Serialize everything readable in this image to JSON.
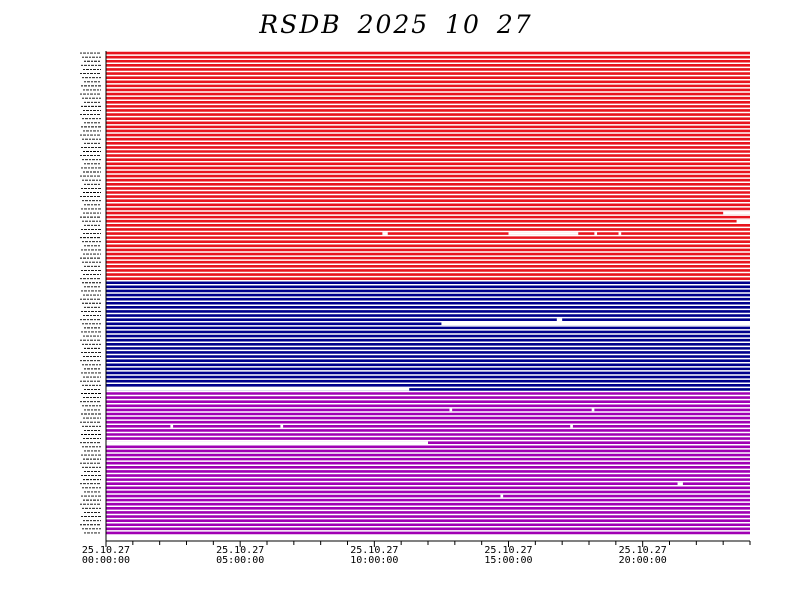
{
  "chart_data": {
    "type": "line",
    "title": "RSDB  2025  10  27",
    "x_tick_labels": [
      {
        "date": "25.10.27",
        "time": "00:00:00",
        "hour": 0
      },
      {
        "date": "25.10.27",
        "time": "05:00:00",
        "hour": 5
      },
      {
        "date": "25.10.27",
        "time": "10:00:00",
        "hour": 10
      },
      {
        "date": "25.10.27",
        "time": "15:00:00",
        "hour": 15
      },
      {
        "date": "25.10.27",
        "time": "20:00:00",
        "hour": 20
      }
    ],
    "xlim_hours": [
      0,
      24
    ],
    "minor_tick_interval_hours": 1,
    "groups": [
      {
        "color": "#e8141e",
        "channel_count": 56
      },
      {
        "color": "#00008c",
        "channel_count": 27
      },
      {
        "color": "#a000b4",
        "channel_count": 35
      }
    ],
    "gaps": [
      {
        "channel": 39,
        "start_hour": 23.0,
        "end_hour": 24.0
      },
      {
        "channel": 41,
        "start_hour": 23.5,
        "end_hour": 24.0
      },
      {
        "channel": 44,
        "start_hour": 15.0,
        "end_hour": 17.6
      },
      {
        "channel": 44,
        "start_hour": 10.3,
        "end_hour": 10.5
      },
      {
        "channel": 44,
        "start_hour": 18.2,
        "end_hour": 18.3
      },
      {
        "channel": 44,
        "start_hour": 19.1,
        "end_hour": 19.2
      },
      {
        "channel": 66,
        "start_hour": 12.5,
        "end_hour": 24.0
      },
      {
        "channel": 65,
        "start_hour": 16.8,
        "end_hour": 17.0
      },
      {
        "channel": 82,
        "start_hour": 0.0,
        "end_hour": 11.3
      },
      {
        "channel": 87,
        "start_hour": 12.8,
        "end_hour": 12.9
      },
      {
        "channel": 87,
        "start_hour": 18.1,
        "end_hour": 18.2
      },
      {
        "channel": 91,
        "start_hour": 2.4,
        "end_hour": 2.5
      },
      {
        "channel": 91,
        "start_hour": 6.5,
        "end_hour": 6.6
      },
      {
        "channel": 91,
        "start_hour": 17.3,
        "end_hour": 17.4
      },
      {
        "channel": 95,
        "start_hour": 0.0,
        "end_hour": 12.0
      },
      {
        "channel": 105,
        "start_hour": 21.3,
        "end_hour": 21.5
      },
      {
        "channel": 108,
        "start_hour": 14.7,
        "end_hour": 14.8
      }
    ]
  }
}
